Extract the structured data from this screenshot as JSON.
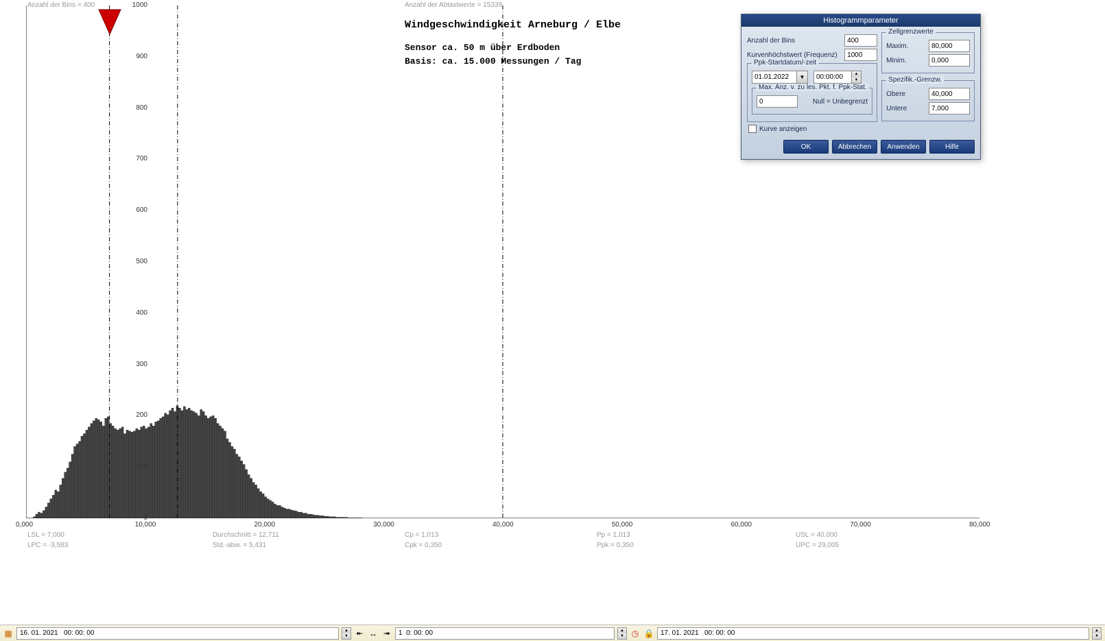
{
  "header": {
    "bins_info": "Anzahl der Bins =   400",
    "samples_info": "Anzahl der Abtastwerte = 15339"
  },
  "chart": {
    "title": "Windgeschwindigkeit  Arneburg / Elbe",
    "subtitle1": "Sensor ca. 50 m über Erdboden",
    "subtitle2": "Basis:  ca.  15.000  Messungen  /  Tag",
    "type": "histogram",
    "background_color": "#ffffff",
    "bar_color": "#444444",
    "bar_border": "#000000",
    "axis_color": "#000000",
    "marker_color": "#cc0000",
    "marker_x": 7000,
    "vlines_x": [
      7000,
      12711,
      40000
    ],
    "xlim": [
      0,
      80000
    ],
    "ylim": [
      0,
      1000
    ],
    "xtick_step": 10000,
    "xtick_labels": [
      "0,000",
      "10,000",
      "20,000",
      "30,000",
      "40,000",
      "50,000",
      "60,000",
      "70,000",
      "80,000"
    ],
    "yticks": [
      0,
      100,
      200,
      300,
      400,
      500,
      600,
      700,
      800,
      900,
      1000
    ],
    "bars": [
      [
        700,
        3
      ],
      [
        900,
        8
      ],
      [
        1100,
        12
      ],
      [
        1300,
        10
      ],
      [
        1500,
        15
      ],
      [
        1700,
        22
      ],
      [
        1900,
        30
      ],
      [
        2100,
        38
      ],
      [
        2300,
        45
      ],
      [
        2500,
        55
      ],
      [
        2700,
        52
      ],
      [
        2900,
        65
      ],
      [
        3100,
        78
      ],
      [
        3300,
        90
      ],
      [
        3500,
        98
      ],
      [
        3700,
        110
      ],
      [
        3900,
        125
      ],
      [
        4100,
        140
      ],
      [
        4300,
        145
      ],
      [
        4500,
        150
      ],
      [
        4700,
        160
      ],
      [
        4900,
        165
      ],
      [
        5100,
        172
      ],
      [
        5300,
        178
      ],
      [
        5500,
        185
      ],
      [
        5700,
        190
      ],
      [
        5900,
        195
      ],
      [
        6100,
        192
      ],
      [
        6300,
        188
      ],
      [
        6500,
        180
      ],
      [
        6700,
        195
      ],
      [
        6900,
        198
      ],
      [
        7100,
        185
      ],
      [
        7300,
        180
      ],
      [
        7500,
        175
      ],
      [
        7700,
        172
      ],
      [
        7900,
        175
      ],
      [
        8100,
        178
      ],
      [
        8300,
        165
      ],
      [
        8500,
        172
      ],
      [
        8700,
        170
      ],
      [
        8900,
        168
      ],
      [
        9100,
        170
      ],
      [
        9300,
        175
      ],
      [
        9500,
        172
      ],
      [
        9700,
        178
      ],
      [
        9900,
        180
      ],
      [
        10100,
        175
      ],
      [
        10300,
        178
      ],
      [
        10500,
        185
      ],
      [
        10700,
        180
      ],
      [
        10900,
        188
      ],
      [
        11100,
        190
      ],
      [
        11300,
        195
      ],
      [
        11500,
        198
      ],
      [
        11700,
        205
      ],
      [
        11900,
        202
      ],
      [
        12100,
        210
      ],
      [
        12300,
        215
      ],
      [
        12500,
        208
      ],
      [
        12700,
        220
      ],
      [
        12900,
        215
      ],
      [
        13100,
        210
      ],
      [
        13300,
        218
      ],
      [
        13500,
        212
      ],
      [
        13700,
        215
      ],
      [
        13900,
        210
      ],
      [
        14100,
        208
      ],
      [
        14300,
        205
      ],
      [
        14500,
        200
      ],
      [
        14700,
        212
      ],
      [
        14900,
        208
      ],
      [
        15100,
        200
      ],
      [
        15300,
        195
      ],
      [
        15500,
        198
      ],
      [
        15700,
        200
      ],
      [
        15900,
        195
      ],
      [
        16100,
        185
      ],
      [
        16300,
        180
      ],
      [
        16500,
        175
      ],
      [
        16700,
        170
      ],
      [
        16900,
        155
      ],
      [
        17100,
        148
      ],
      [
        17300,
        140
      ],
      [
        17500,
        135
      ],
      [
        17700,
        125
      ],
      [
        17900,
        120
      ],
      [
        18100,
        112
      ],
      [
        18300,
        105
      ],
      [
        18500,
        95
      ],
      [
        18700,
        85
      ],
      [
        18900,
        78
      ],
      [
        19100,
        70
      ],
      [
        19300,
        65
      ],
      [
        19500,
        58
      ],
      [
        19700,
        52
      ],
      [
        19900,
        48
      ],
      [
        20100,
        42
      ],
      [
        20300,
        38
      ],
      [
        20500,
        35
      ],
      [
        20700,
        32
      ],
      [
        20900,
        28
      ],
      [
        21100,
        25
      ],
      [
        21300,
        25
      ],
      [
        21500,
        22
      ],
      [
        21700,
        20
      ],
      [
        21900,
        18
      ],
      [
        22100,
        18
      ],
      [
        22300,
        16
      ],
      [
        22500,
        15
      ],
      [
        22700,
        14
      ],
      [
        22900,
        12
      ],
      [
        23100,
        12
      ],
      [
        23300,
        10
      ],
      [
        23500,
        10
      ],
      [
        23700,
        8
      ],
      [
        23900,
        8
      ],
      [
        24100,
        7
      ],
      [
        24300,
        6
      ],
      [
        24500,
        6
      ],
      [
        24700,
        5
      ],
      [
        24900,
        5
      ],
      [
        25100,
        4
      ],
      [
        25300,
        4
      ],
      [
        25500,
        3
      ],
      [
        25700,
        3
      ],
      [
        25900,
        3
      ],
      [
        26100,
        2
      ],
      [
        26300,
        2
      ],
      [
        26500,
        2
      ],
      [
        26700,
        2
      ],
      [
        26900,
        2
      ],
      [
        27100,
        1
      ],
      [
        27300,
        1
      ],
      [
        27500,
        1
      ],
      [
        27700,
        1
      ],
      [
        27900,
        1
      ],
      [
        28100,
        1
      ]
    ]
  },
  "stats": {
    "lsl": "LSL = 7,000",
    "lpc": "LPC = -3,583",
    "avg": "Durchschnitt = 12,711",
    "std": "Std.-abw. = 5,431",
    "cp": "Cp = 1,013",
    "cpk": "Cpk = 0,350",
    "pp": "Pp = 1,013",
    "ppk": "Ppk = 0,350",
    "usl": "USL = 40,000",
    "upc": "UPC = 29,005"
  },
  "dialog": {
    "title": "Histogrammparameter",
    "bins_label": "Anzahl der Bins",
    "bins_value": "400",
    "peak_label": "Kurvenhöchstwert (Frequenz)",
    "peak_value": "1000",
    "ppk_group_label": "Ppk-Startdatum/-zeit",
    "ppk_date": "01.01.2022",
    "ppk_time": "00:00:00",
    "max_group_label": "Max. Anz. v. zu les. Pkt. f. Ppk-Stat.",
    "max_value": "0",
    "max_hint": "Null = Unbegrenzt",
    "cell_limits_label": "Zellgrenzwerte",
    "max_label": "Maxim.",
    "max_cell": "80,000",
    "min_label": "Minim.",
    "min_cell": "0,000",
    "spec_limits_label": "Spezifik.-Grenzw.",
    "upper_label": "Obere",
    "upper_val": "40,000",
    "lower_label": "Untere",
    "lower_val": "7,000",
    "show_curve_label": "Kurve anzeigen",
    "show_curve_checked": false,
    "ok": "OK",
    "cancel": "Abbrechen",
    "apply": "Anwenden",
    "help": "Hilfe"
  },
  "bottombar": {
    "start_date": "16. 01. 2021   00: 00: 00",
    "span": "1  0: 00: 00",
    "end_date": "17. 01. 2021   00: 00: 00"
  }
}
